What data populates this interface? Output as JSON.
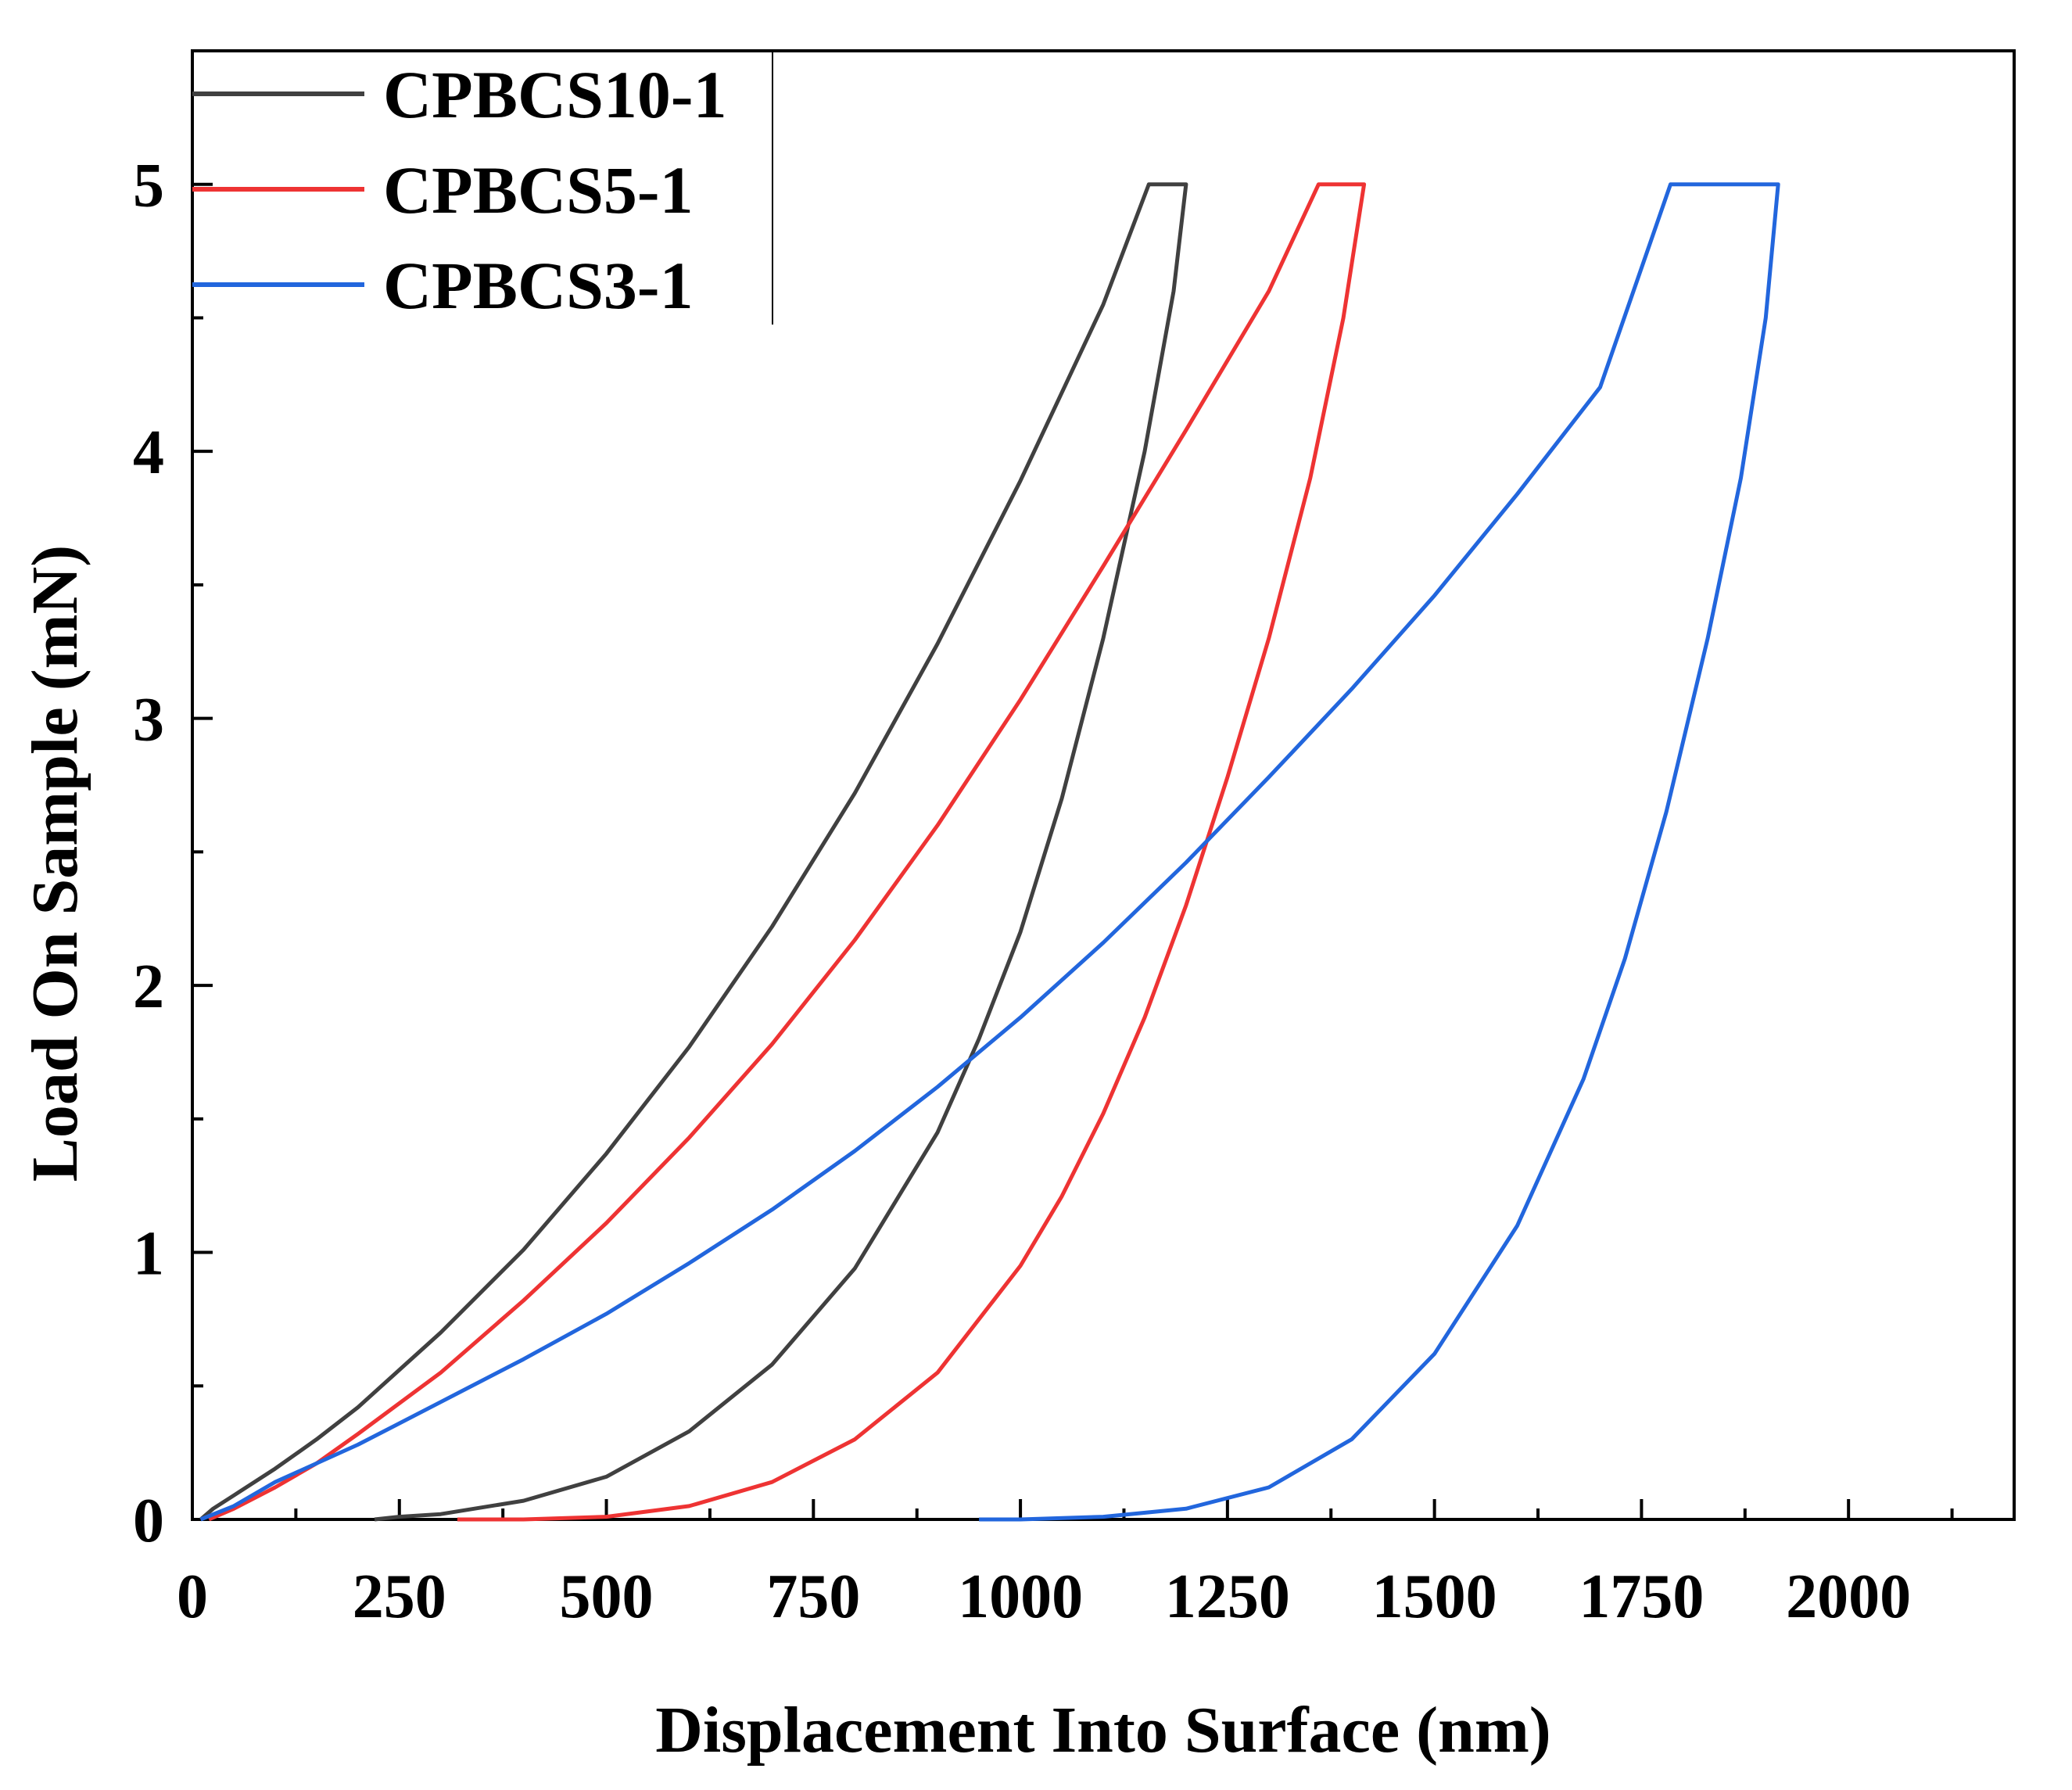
{
  "chart_data": {
    "type": "line",
    "title": "",
    "xlabel": "Displacement Into Surface (nm)",
    "ylabel": "Load On Sample (mN)",
    "xlim": [
      0,
      2200
    ],
    "ylim": [
      0,
      5.5
    ],
    "x_ticks": [
      0,
      250,
      500,
      750,
      1000,
      1250,
      1500,
      1750,
      2000
    ],
    "x_tick_labels": [
      "0",
      "250",
      "500",
      "750",
      "1000",
      "1250",
      "1500",
      "1750",
      "2000"
    ],
    "y_ticks": [
      0,
      1,
      2,
      3,
      4,
      5
    ],
    "y_tick_labels": [
      "0",
      "1",
      "2",
      "3",
      "4",
      "5"
    ],
    "grid": false,
    "legend_position": "top-left",
    "series": [
      {
        "name": "CPBCS10-1",
        "color": "#404040",
        "points": [
          [
            10,
            0
          ],
          [
            25,
            0.04
          ],
          [
            50,
            0.09
          ],
          [
            100,
            0.19
          ],
          [
            150,
            0.3
          ],
          [
            200,
            0.42
          ],
          [
            300,
            0.7
          ],
          [
            400,
            1.01
          ],
          [
            500,
            1.37
          ],
          [
            600,
            1.77
          ],
          [
            700,
            2.22
          ],
          [
            800,
            2.72
          ],
          [
            900,
            3.28
          ],
          [
            1000,
            3.89
          ],
          [
            1100,
            4.55
          ],
          [
            1155,
            5.0
          ],
          [
            1200,
            5.0
          ],
          [
            1185,
            4.6
          ],
          [
            1150,
            4.0
          ],
          [
            1100,
            3.3
          ],
          [
            1050,
            2.7
          ],
          [
            1000,
            2.2
          ],
          [
            950,
            1.8
          ],
          [
            900,
            1.45
          ],
          [
            800,
            0.94
          ],
          [
            700,
            0.58
          ],
          [
            600,
            0.33
          ],
          [
            500,
            0.16
          ],
          [
            400,
            0.07
          ],
          [
            300,
            0.02
          ],
          [
            250,
            0.01
          ],
          [
            220,
            0
          ]
        ]
      },
      {
        "name": "CPBCS5-1",
        "color": "#ee3333",
        "points": [
          [
            20,
            0
          ],
          [
            50,
            0.04
          ],
          [
            100,
            0.12
          ],
          [
            150,
            0.21
          ],
          [
            200,
            0.32
          ],
          [
            300,
            0.55
          ],
          [
            400,
            0.82
          ],
          [
            500,
            1.11
          ],
          [
            600,
            1.43
          ],
          [
            700,
            1.78
          ],
          [
            800,
            2.17
          ],
          [
            900,
            2.6
          ],
          [
            1000,
            3.07
          ],
          [
            1100,
            3.57
          ],
          [
            1200,
            4.08
          ],
          [
            1300,
            4.6
          ],
          [
            1360,
            5.0
          ],
          [
            1415,
            5.0
          ],
          [
            1390,
            4.5
          ],
          [
            1350,
            3.9
          ],
          [
            1300,
            3.3
          ],
          [
            1250,
            2.78
          ],
          [
            1200,
            2.3
          ],
          [
            1150,
            1.88
          ],
          [
            1100,
            1.52
          ],
          [
            1050,
            1.21
          ],
          [
            1000,
            0.95
          ],
          [
            900,
            0.55
          ],
          [
            800,
            0.3
          ],
          [
            700,
            0.14
          ],
          [
            600,
            0.05
          ],
          [
            500,
            0.01
          ],
          [
            400,
            0.0
          ],
          [
            320,
            0
          ]
        ]
      },
      {
        "name": "CPBCS3-1",
        "color": "#2266dd",
        "points": [
          [
            10,
            0
          ],
          [
            50,
            0.05
          ],
          [
            100,
            0.14
          ],
          [
            200,
            0.28
          ],
          [
            300,
            0.44
          ],
          [
            400,
            0.6
          ],
          [
            500,
            0.77
          ],
          [
            600,
            0.96
          ],
          [
            700,
            1.16
          ],
          [
            800,
            1.38
          ],
          [
            900,
            1.62
          ],
          [
            1000,
            1.88
          ],
          [
            1100,
            2.16
          ],
          [
            1200,
            2.46
          ],
          [
            1300,
            2.78
          ],
          [
            1400,
            3.11
          ],
          [
            1500,
            3.46
          ],
          [
            1600,
            3.84
          ],
          [
            1700,
            4.24
          ],
          [
            1785,
            5.0
          ],
          [
            1915,
            5.0
          ],
          [
            1900,
            4.5
          ],
          [
            1870,
            3.9
          ],
          [
            1830,
            3.3
          ],
          [
            1780,
            2.65
          ],
          [
            1730,
            2.1
          ],
          [
            1680,
            1.65
          ],
          [
            1600,
            1.1
          ],
          [
            1500,
            0.62
          ],
          [
            1400,
            0.3
          ],
          [
            1300,
            0.12
          ],
          [
            1200,
            0.04
          ],
          [
            1100,
            0.01
          ],
          [
            1000,
            0
          ],
          [
            950,
            0
          ]
        ]
      }
    ]
  }
}
